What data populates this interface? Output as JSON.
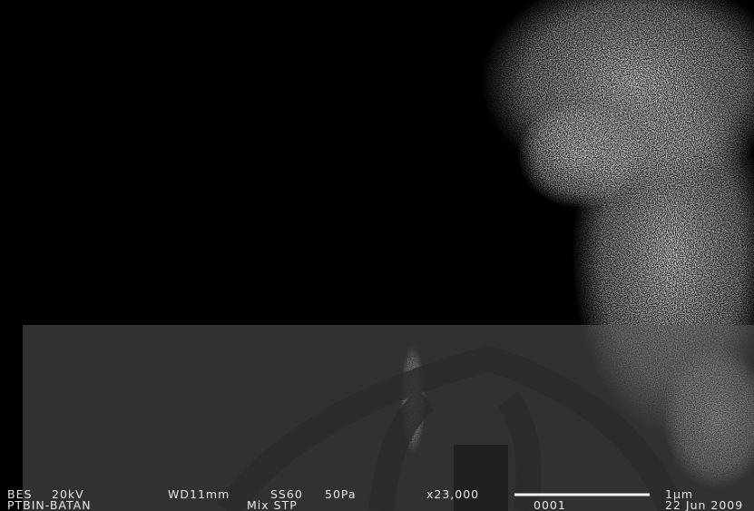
{
  "info_bar": {
    "row1": [
      "BES",
      "20kV",
      "WD11mm",
      "SS60",
      "50Pa",
      "x23,000",
      "1µm"
    ],
    "row2": [
      "PTBIN-BATAN",
      "Mix STP",
      "0001",
      "22 Jun 2009"
    ]
  }
}
